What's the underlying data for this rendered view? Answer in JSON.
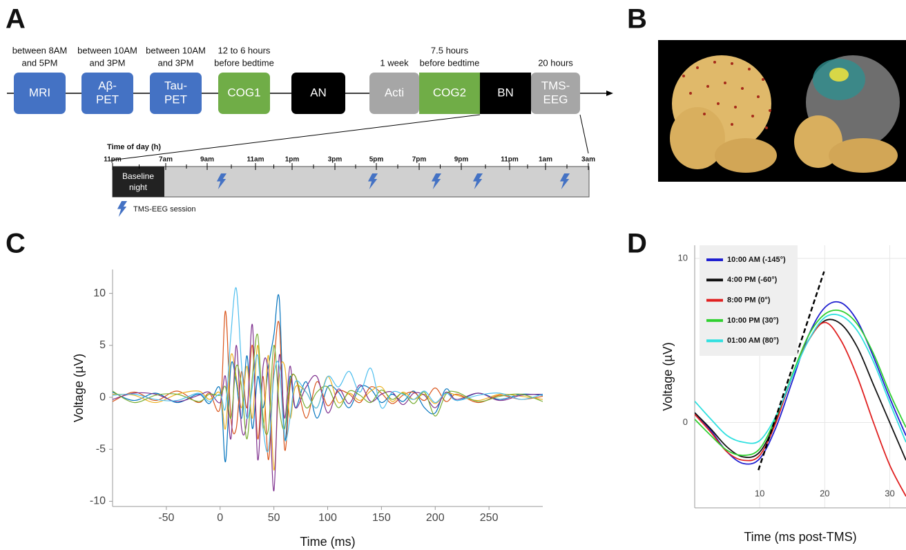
{
  "panels": {
    "a": {
      "label": "A",
      "steps": [
        {
          "label": [
            "MRI"
          ],
          "note": [
            "between 8AM",
            "and 5PM"
          ],
          "color": "#4472c4"
        },
        {
          "label": [
            "Aβ-",
            "PET"
          ],
          "note": [
            "between 10AM",
            "and 3PM"
          ],
          "color": "#4472c4"
        },
        {
          "label": [
            "Tau-",
            "PET"
          ],
          "note": [
            "between 10AM",
            "and 3PM"
          ],
          "color": "#4472c4"
        },
        {
          "label": [
            "COG1"
          ],
          "note": [
            "12 to 6 hours",
            "before bedtime"
          ],
          "color": "#70ad47"
        },
        {
          "label": [
            "AN"
          ],
          "color": "#000000"
        },
        {
          "label": [
            "Acti"
          ],
          "note": [
            "1 week"
          ],
          "color": "#a6a6a6"
        },
        {
          "label": [
            "COG2"
          ],
          "note": [
            "7.5 hours",
            "before bedtime"
          ],
          "color": "#70ad47"
        },
        {
          "label": [
            "BN"
          ],
          "color": "#000000"
        },
        {
          "label": [
            "TMS-",
            "EEG"
          ],
          "note": [
            "20 hours"
          ],
          "color": "#a6a6a6"
        }
      ],
      "zoom": {
        "axis_title": "Time of day (h)",
        "hours": [
          "11pm",
          "7am",
          "9am",
          "11am",
          "1pm",
          "3pm",
          "5pm",
          "7pm",
          "9pm",
          "11pm",
          "1am",
          "3am"
        ],
        "baseline": [
          "Baseline",
          "night"
        ],
        "legend": "TMS-EEG session"
      }
    },
    "b": {
      "label": "B"
    },
    "c": {
      "label": "C"
    },
    "d": {
      "label": "D"
    }
  },
  "chart_data": [
    {
      "type": "line",
      "xlabel": "Time (ms)",
      "ylabel": "Voltage (µV)",
      "x": [
        -100,
        -80,
        -60,
        -40,
        -20,
        -10,
        0,
        5,
        10,
        15,
        20,
        25,
        30,
        35,
        40,
        45,
        50,
        55,
        60,
        65,
        70,
        80,
        90,
        100,
        110,
        120,
        130,
        140,
        150,
        160,
        170,
        180,
        190,
        200,
        210,
        220,
        240,
        260,
        280,
        300
      ],
      "xlim": [
        -100,
        300
      ],
      "xticks": [
        -50,
        0,
        50,
        100,
        150,
        200,
        250
      ],
      "ylim": [
        -10.5,
        12.3
      ],
      "yticks": [
        -10,
        -5,
        0,
        5,
        10
      ],
      "series": [
        {
          "color": "#0072bd",
          "values": [
            0.5,
            -0.3,
            0.4,
            -0.5,
            0.3,
            -0.6,
            0.8,
            -6.2,
            3,
            1.5,
            -2,
            4,
            -3,
            2,
            -1,
            3,
            6,
            9.5,
            -4,
            2,
            -1,
            1.5,
            -2,
            1,
            0.5,
            -1,
            1,
            0.8,
            -0.5,
            0.3,
            -0.4,
            0.6,
            -1,
            -1.5,
            0.8,
            -0.3,
            0.4,
            -0.2,
            0.3,
            0.2
          ]
        },
        {
          "color": "#d95319",
          "values": [
            -0.4,
            0.5,
            -0.3,
            0.6,
            -0.5,
            0.4,
            -1,
            8.3,
            -2,
            -3,
            2.5,
            -1,
            5,
            -4,
            2,
            -6,
            3,
            7,
            -5,
            1,
            2,
            -2,
            1.5,
            -0.8,
            0.6,
            0.3,
            -0.5,
            1,
            0.4,
            -0.6,
            0.2,
            0.5,
            -0.3,
            0.9,
            -0.4,
            0.3,
            -0.5,
            0.2,
            -0.2,
            0.1
          ]
        },
        {
          "color": "#edb120",
          "values": [
            0.3,
            0.2,
            -0.5,
            0.3,
            0.6,
            -0.2,
            0.4,
            -3,
            4,
            2,
            -1,
            3,
            -2,
            5,
            -3,
            4,
            -7,
            2,
            3,
            -2,
            1,
            0.5,
            -1,
            2,
            -0.5,
            0.4,
            -0.3,
            0.6,
            1,
            -0.4,
            0.5,
            -0.2,
            0.3,
            -0.6,
            0.4,
            0.2,
            -0.3,
            0.3,
            0.1,
            -0.2
          ]
        },
        {
          "color": "#7e2f8e",
          "values": [
            -0.2,
            0.4,
            0.3,
            -0.4,
            0.2,
            0.5,
            -0.5,
            2,
            -4,
            5,
            -3,
            -2,
            7,
            -6,
            3,
            2,
            -9,
            4,
            -2,
            3,
            -1,
            1,
            2,
            -1.5,
            0.8,
            -0.6,
            1.2,
            -0.4,
            0.3,
            0.5,
            -0.7,
            0.4,
            0.2,
            -1,
            0.5,
            -0.2,
            0.4,
            -0.3,
            0.2,
            0.3
          ]
        },
        {
          "color": "#77ac30",
          "values": [
            0.6,
            -0.5,
            0.2,
            0.3,
            -0.4,
            0.3,
            0.2,
            1,
            -2,
            3,
            1,
            -4,
            2,
            6,
            -2,
            -3,
            5,
            -1,
            -3,
            1.5,
            2,
            -1,
            0.5,
            1,
            -1,
            0.6,
            0.2,
            -0.5,
            0.7,
            -0.2,
            0.4,
            -0.6,
            0.5,
            -1.8,
            0.3,
            0.5,
            -0.4,
            0.1,
            0.3,
            -0.4
          ]
        },
        {
          "color": "#4dbeee",
          "values": [
            0.2,
            0.3,
            -0.2,
            -0.3,
            0.4,
            -0.4,
            0.3,
            -1,
            6,
            10.5,
            3,
            -2,
            1,
            4,
            -3,
            -5,
            2,
            3,
            -4,
            -2,
            1.5,
            0.5,
            -1,
            2,
            1,
            2.5,
            0.5,
            2.8,
            -1,
            0.5,
            0.3,
            -0.2,
            0.6,
            -0.5,
            0.4,
            -0.3,
            0.2,
            0.4,
            -0.2,
            0.3
          ]
        }
      ]
    },
    {
      "type": "line",
      "xlabel": "Time (ms post-TMS)",
      "ylabel": "Voltage (µV)",
      "x": [
        0,
        2.5,
        5,
        7.5,
        10,
        12.5,
        15,
        17.5,
        20,
        22.5,
        25,
        27.5,
        30,
        32.5
      ],
      "xlim": [
        0,
        32.5
      ],
      "xticks": [
        10,
        20,
        30
      ],
      "ylim": [
        -5.2,
        10.8
      ],
      "yticks": [
        0,
        10
      ],
      "grid": true,
      "legend": "upper left",
      "series": [
        {
          "name": "10:00 AM (-145°)",
          "color": "#1f1fd0",
          "values": [
            0.6,
            -0.5,
            -1.8,
            -2.5,
            -2.2,
            -0.3,
            2.5,
            5.3,
            7.0,
            7.3,
            6.2,
            4.0,
            1.5,
            -0.8
          ]
        },
        {
          "name": "4:00 PM (-60°)",
          "color": "#111111",
          "values": [
            0.6,
            -0.4,
            -1.5,
            -2.1,
            -1.8,
            0.1,
            2.8,
            5.0,
            6.2,
            6.0,
            4.6,
            2.3,
            0,
            -2.3
          ]
        },
        {
          "name": "8:00 PM (0°)",
          "color": "#e02020",
          "values": [
            0.5,
            -0.6,
            -1.8,
            -2.3,
            -2.0,
            0,
            2.9,
            5.0,
            6.1,
            5.0,
            2.8,
            0,
            -2.6,
            -4.5
          ]
        },
        {
          "name": "10:00 PM (30°)",
          "color": "#30d030",
          "values": [
            0.2,
            -0.8,
            -1.7,
            -2.0,
            -1.6,
            0.3,
            2.9,
            5.3,
            6.6,
            6.8,
            6.0,
            4.2,
            1.8,
            -0.3
          ]
        },
        {
          "name": "01:00 AM (80°)",
          "color": "#30e0e0",
          "values": [
            1.3,
            0.2,
            -0.8,
            -1.2,
            -1.1,
            0.4,
            2.8,
            5.0,
            6.4,
            6.5,
            5.6,
            3.7,
            1.2,
            -1.2
          ]
        }
      ],
      "trend_line": {
        "x": [
          9.8,
          19.9
        ],
        "values": [
          -2.9,
          9.2
        ]
      }
    }
  ]
}
